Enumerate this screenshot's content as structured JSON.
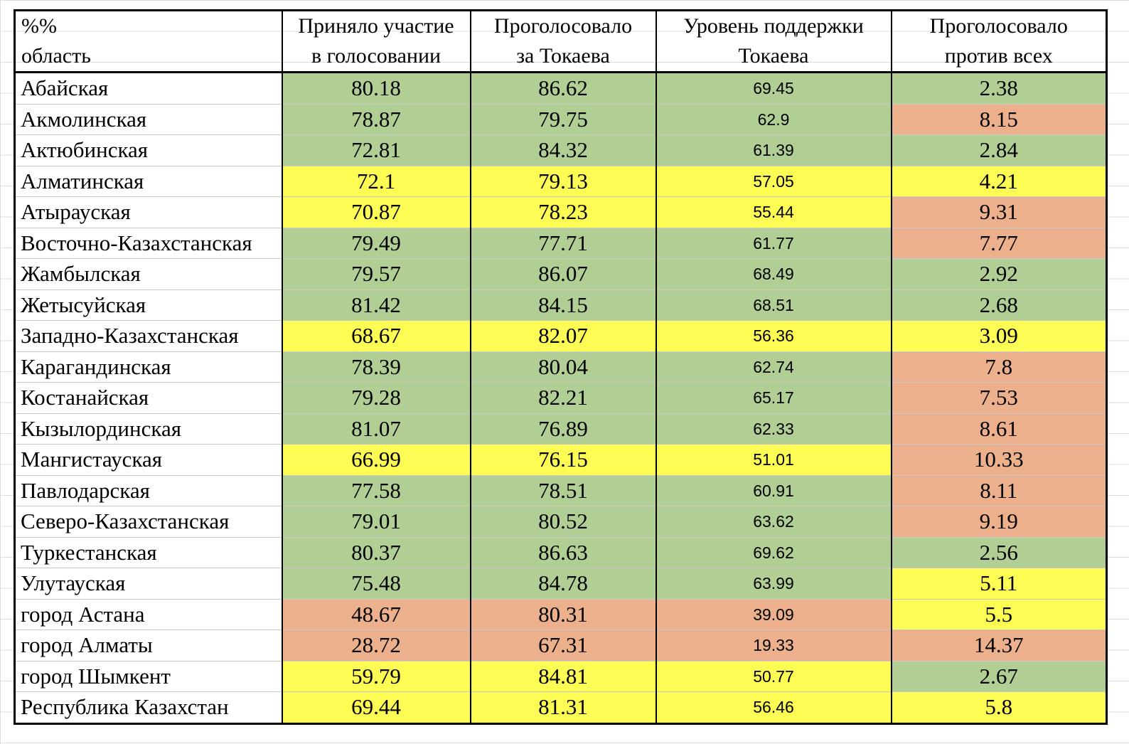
{
  "colors": {
    "green": "#b1cf95",
    "yellow": "#fdfc54",
    "orange": "#ecb18c"
  },
  "header": {
    "region": [
      "%%",
      "область"
    ],
    "turnout": [
      "Приняло участие",
      "в голосовании"
    ],
    "voted_tokayev": [
      "Проголосовало",
      "за Токаева"
    ],
    "support_level": [
      "Уровень поддержки",
      "Токаева"
    ],
    "against_all": [
      "Проголосовало",
      "против всех"
    ]
  },
  "rows": [
    {
      "region": "Абайская",
      "turnout": "80.18",
      "voted_tokayev": "86.62",
      "support_level": "69.45",
      "against_all": "2.38",
      "fill": [
        "green",
        "green",
        "green",
        "green"
      ]
    },
    {
      "region": "Акмолинская",
      "turnout": "78.87",
      "voted_tokayev": "79.75",
      "support_level": "62.9",
      "against_all": "8.15",
      "fill": [
        "green",
        "green",
        "green",
        "orange"
      ]
    },
    {
      "region": "Актюбинская",
      "turnout": "72.81",
      "voted_tokayev": "84.32",
      "support_level": "61.39",
      "against_all": "2.84",
      "fill": [
        "green",
        "green",
        "green",
        "green"
      ]
    },
    {
      "region": "Алматинская",
      "turnout": "72.1",
      "voted_tokayev": "79.13",
      "support_level": "57.05",
      "against_all": "4.21",
      "fill": [
        "yellow",
        "yellow",
        "yellow",
        "yellow"
      ]
    },
    {
      "region": "Атырауская",
      "turnout": "70.87",
      "voted_tokayev": "78.23",
      "support_level": "55.44",
      "against_all": "9.31",
      "fill": [
        "yellow",
        "yellow",
        "yellow",
        "orange"
      ]
    },
    {
      "region": "Восточно-Казахстанская",
      "turnout": "79.49",
      "voted_tokayev": "77.71",
      "support_level": "61.77",
      "against_all": "7.77",
      "fill": [
        "green",
        "green",
        "green",
        "orange"
      ]
    },
    {
      "region": "Жамбылская",
      "turnout": "79.57",
      "voted_tokayev": "86.07",
      "support_level": "68.49",
      "against_all": "2.92",
      "fill": [
        "green",
        "green",
        "green",
        "green"
      ]
    },
    {
      "region": "Жетысуйская",
      "turnout": "81.42",
      "voted_tokayev": "84.15",
      "support_level": "68.51",
      "against_all": "2.68",
      "fill": [
        "green",
        "green",
        "green",
        "green"
      ]
    },
    {
      "region": "Западно-Казахстанская",
      "turnout": "68.67",
      "voted_tokayev": "82.07",
      "support_level": "56.36",
      "against_all": "3.09",
      "fill": [
        "yellow",
        "yellow",
        "yellow",
        "yellow"
      ]
    },
    {
      "region": "Карагандинская",
      "turnout": "78.39",
      "voted_tokayev": "80.04",
      "support_level": "62.74",
      "against_all": "7.8",
      "fill": [
        "green",
        "green",
        "green",
        "orange"
      ]
    },
    {
      "region": "Костанайская",
      "turnout": "79.28",
      "voted_tokayev": "82.21",
      "support_level": "65.17",
      "against_all": "7.53",
      "fill": [
        "green",
        "green",
        "green",
        "orange"
      ]
    },
    {
      "region": "Кызылординская",
      "turnout": "81.07",
      "voted_tokayev": "76.89",
      "support_level": "62.33",
      "against_all": "8.61",
      "fill": [
        "green",
        "green",
        "green",
        "orange"
      ]
    },
    {
      "region": "Мангистауская",
      "turnout": "66.99",
      "voted_tokayev": "76.15",
      "support_level": "51.01",
      "against_all": "10.33",
      "fill": [
        "yellow",
        "yellow",
        "yellow",
        "orange"
      ]
    },
    {
      "region": "Павлодарская",
      "turnout": "77.58",
      "voted_tokayev": "78.51",
      "support_level": "60.91",
      "against_all": "8.11",
      "fill": [
        "green",
        "green",
        "green",
        "orange"
      ]
    },
    {
      "region": "Северо-Казахстанская",
      "turnout": "79.01",
      "voted_tokayev": "80.52",
      "support_level": "63.62",
      "against_all": "9.19",
      "fill": [
        "green",
        "green",
        "green",
        "orange"
      ]
    },
    {
      "region": "Туркестанская",
      "turnout": "80.37",
      "voted_tokayev": "86.63",
      "support_level": "69.62",
      "against_all": "2.56",
      "fill": [
        "green",
        "green",
        "green",
        "green"
      ]
    },
    {
      "region": "Улутауская",
      "turnout": "75.48",
      "voted_tokayev": "84.78",
      "support_level": "63.99",
      "against_all": "5.11",
      "fill": [
        "green",
        "green",
        "green",
        "yellow"
      ]
    },
    {
      "region": "город Астана",
      "turnout": "48.67",
      "voted_tokayev": "80.31",
      "support_level": "39.09",
      "against_all": "5.5",
      "fill": [
        "orange",
        "orange",
        "orange",
        "yellow"
      ]
    },
    {
      "region": "город Алматы",
      "turnout": "28.72",
      "voted_tokayev": "67.31",
      "support_level": "19.33",
      "against_all": "14.37",
      "fill": [
        "orange",
        "orange",
        "orange",
        "orange"
      ]
    },
    {
      "region": "город Шымкент",
      "turnout": "59.79",
      "voted_tokayev": "84.81",
      "support_level": "50.77",
      "against_all": "2.67",
      "fill": [
        "yellow",
        "yellow",
        "yellow",
        "green"
      ]
    },
    {
      "region": "Республика Казахстан",
      "turnout": "69.44",
      "voted_tokayev": "81.31",
      "support_level": "56.46",
      "against_all": "5.8",
      "fill": [
        "yellow",
        "yellow",
        "yellow",
        "yellow"
      ]
    }
  ]
}
